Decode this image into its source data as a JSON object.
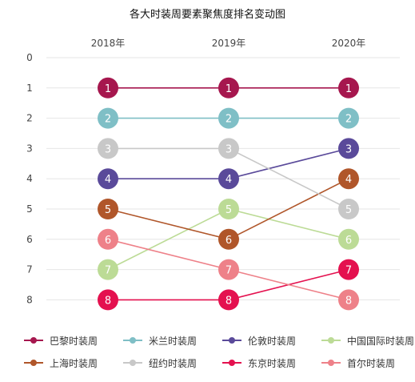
{
  "chart_data": {
    "type": "line",
    "title": "各大时装周要素聚焦度排名变动图",
    "xlabel": "",
    "ylabel": "",
    "categories": [
      "2018年",
      "2019年",
      "2020年"
    ],
    "y_ticks": [
      "0",
      "1",
      "2",
      "3",
      "4",
      "5",
      "6",
      "7",
      "8"
    ],
    "ylim": [
      0,
      8
    ],
    "y_inverted": true,
    "grid": true,
    "legend_position": "bottom",
    "series": [
      {
        "name": "巴黎时装周",
        "values": [
          1,
          1,
          1
        ],
        "color": "#a6174e"
      },
      {
        "name": "米兰时装周",
        "values": [
          2,
          2,
          2
        ],
        "color": "#7fbfc6"
      },
      {
        "name": "伦敦时装周",
        "values": [
          4,
          4,
          3
        ],
        "color": "#5a4a9a"
      },
      {
        "name": "中国国际时装周",
        "values": [
          7,
          5,
          6
        ],
        "color": "#bcdb96"
      },
      {
        "name": "上海时装周",
        "values": [
          5,
          6,
          4
        ],
        "color": "#b0562a"
      },
      {
        "name": "纽约时装周",
        "values": [
          3,
          3,
          5
        ],
        "color": "#c8c8c8"
      },
      {
        "name": "东京时装周",
        "values": [
          8,
          8,
          7
        ],
        "color": "#e4114f"
      },
      {
        "name": "首尔时装周",
        "values": [
          6,
          7,
          8
        ],
        "color": "#ee8189"
      }
    ]
  }
}
